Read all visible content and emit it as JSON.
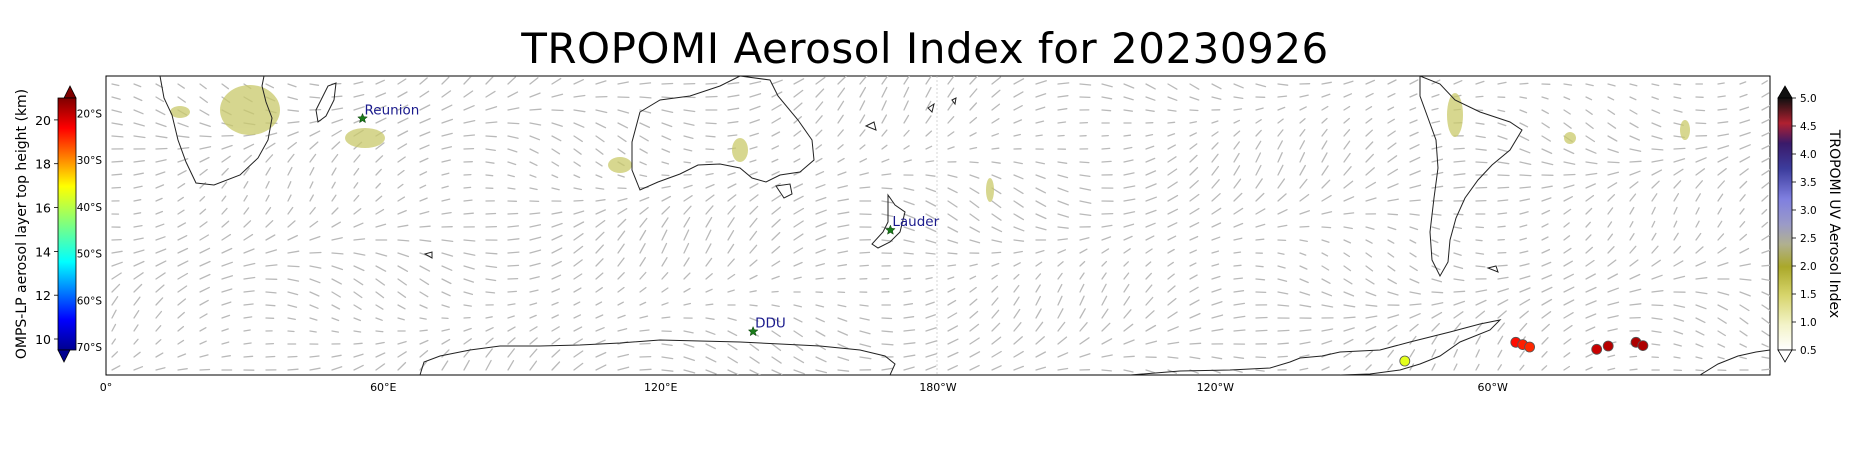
{
  "title": "TROPOMI Aerosol Index for 20230926",
  "map": {
    "lon_ticks": [
      "0°",
      "60°E",
      "120°E",
      "180°W",
      "120°W",
      "60°W"
    ],
    "lat_ticks": [
      "20°S",
      "30°S",
      "40°S",
      "50°S",
      "60°S",
      "70°S"
    ],
    "stations": [
      {
        "name": "Reunion",
        "lon": 55.5,
        "lat": -21.1
      },
      {
        "name": "Lauder",
        "lon": 169.7,
        "lat": -45.0
      },
      {
        "name": "DDU",
        "lon": 140.0,
        "lat": -66.7
      }
    ],
    "omps_points": [
      {
        "lon": 281.0,
        "lat": -73.0,
        "height_km": 16.6
      },
      {
        "lon": 305.0,
        "lat": -69.0,
        "height_km": 19.5
      },
      {
        "lon": 306.5,
        "lat": -69.5,
        "height_km": 19.3
      },
      {
        "lon": 308.0,
        "lat": -70.0,
        "height_km": 19.2
      },
      {
        "lon": 322.5,
        "lat": -70.5,
        "height_km": 20.2
      },
      {
        "lon": 325.0,
        "lat": -69.8,
        "height_km": 20.4
      },
      {
        "lon": 331.0,
        "lat": -69.0,
        "height_km": 20.5
      },
      {
        "lon": 332.5,
        "lat": -69.7,
        "height_km": 20.5
      }
    ]
  },
  "colorbar_left": {
    "label": "OMPS-LP aerosol layer top height (km)",
    "ticks": [
      "10",
      "12",
      "14",
      "16",
      "18",
      "20"
    ],
    "range": [
      9.5,
      21
    ]
  },
  "colorbar_right": {
    "label": "TROPOMI UV Aerosol Index",
    "ticks": [
      "0.5",
      "1.0",
      "1.5",
      "2.0",
      "2.5",
      "3.0",
      "3.5",
      "4.0",
      "4.5",
      "5.0"
    ],
    "range": [
      0.5,
      5.0
    ]
  }
}
